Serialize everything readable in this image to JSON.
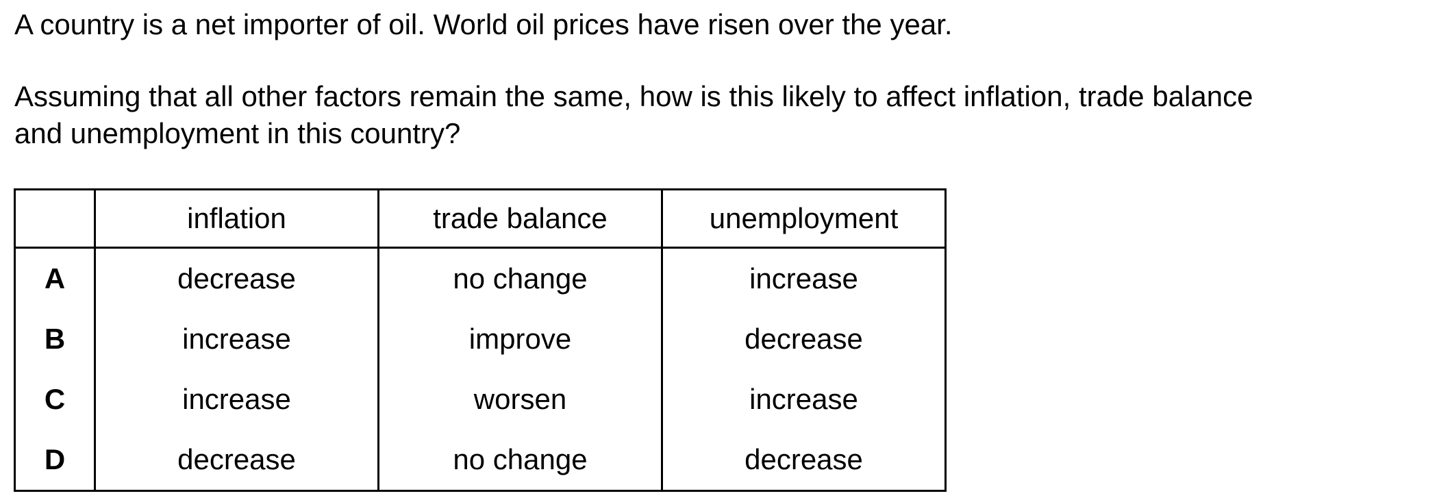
{
  "question": {
    "stem": "A country is a net importer of oil. World oil prices have risen over the year.",
    "prompt_line1": "Assuming that all other factors remain the same, how is this likely to affect inflation, trade balance",
    "prompt_line2": "and unemployment in this country?"
  },
  "table": {
    "headers": [
      "",
      "inflation",
      "trade balance",
      "unemployment"
    ],
    "rows": [
      {
        "letter": "A",
        "inflation": "decrease",
        "trade_balance": "no change",
        "unemployment": "increase"
      },
      {
        "letter": "B",
        "inflation": "increase",
        "trade_balance": "improve",
        "unemployment": "decrease"
      },
      {
        "letter": "C",
        "inflation": "increase",
        "trade_balance": "worsen",
        "unemployment": "increase"
      },
      {
        "letter": "D",
        "inflation": "decrease",
        "trade_balance": "no change",
        "unemployment": "decrease"
      }
    ]
  }
}
